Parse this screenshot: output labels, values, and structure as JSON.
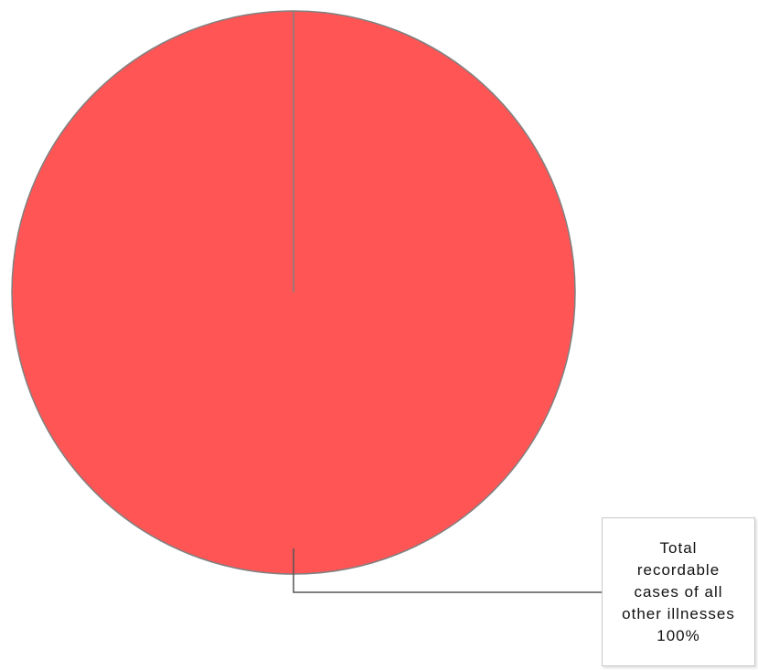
{
  "chart_data": {
    "type": "pie",
    "slices": [
      {
        "label_lines": [
          "Total",
          "recordable",
          "cases of all",
          "other illnesses"
        ],
        "value_label": "100%",
        "value": 100,
        "color": "#ff5555"
      }
    ],
    "legend": "none",
    "border_color": "#808080",
    "leader_color": "#555555"
  }
}
